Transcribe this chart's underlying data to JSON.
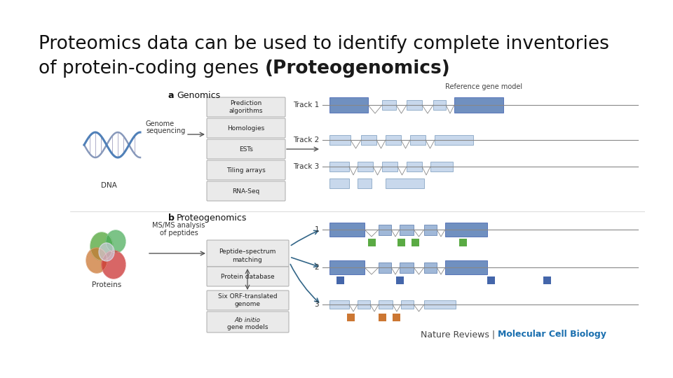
{
  "bg": "#ffffff",
  "title_line1": "Proteomics data can be used to identify complete inventories",
  "title_line2_plain": "of protein-coding genes ",
  "title_line2_bold": "(Proteogenomics)",
  "title_fontsize": 19,
  "title_font": "DejaVu Sans",
  "title_color": "#111111",
  "bold_color": "#1a1a1a",
  "footer_normal": "Nature Reviews | ",
  "footer_bold": "Molecular Cell Biology",
  "footer_color": "#444444",
  "footer_blue": "#1a6faf",
  "box_face": "#eaeaea",
  "box_edge": "#aaaaaa",
  "dna_blue": "#5080b8",
  "track_dark": "#7090c0",
  "track_mid": "#a0b8d8",
  "track_light": "#c8d8ec",
  "green": "#5aaa44",
  "blue_pep": "#4466aa",
  "orange": "#cc7733",
  "arrow_col": "#555555",
  "line_col": "#888888"
}
